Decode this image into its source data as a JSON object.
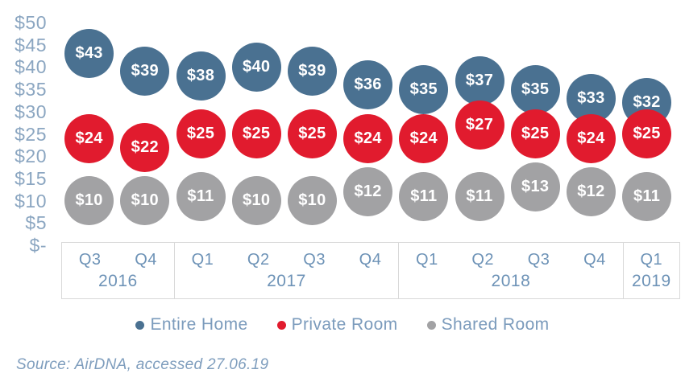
{
  "chart_data": {
    "type": "scatter",
    "subtype": "labeled-bubble-series",
    "title": "",
    "value_prefix": "$",
    "ylim": [
      0,
      50
    ],
    "grid": false,
    "legend_position": "bottom",
    "y_ticks": [
      "$50",
      "$45",
      "$40",
      "$35",
      "$30",
      "$25",
      "$20",
      "$15",
      "$10",
      "$5",
      "$-"
    ],
    "y_tick_values": [
      50,
      45,
      40,
      35,
      30,
      25,
      20,
      15,
      10,
      5,
      0
    ],
    "x_groups": [
      {
        "year": "2016",
        "quarters": [
          "Q3",
          "Q4"
        ]
      },
      {
        "year": "2017",
        "quarters": [
          "Q1",
          "Q2",
          "Q3",
          "Q4"
        ]
      },
      {
        "year": "2018",
        "quarters": [
          "Q1",
          "Q2",
          "Q3",
          "Q4"
        ]
      },
      {
        "year": "2019",
        "quarters": [
          "Q1"
        ]
      }
    ],
    "categories": [
      "2016 Q3",
      "2016 Q4",
      "2017 Q1",
      "2017 Q2",
      "2017 Q3",
      "2017 Q4",
      "2018 Q1",
      "2018 Q2",
      "2018 Q3",
      "2018 Q4",
      "2019 Q1"
    ],
    "series": [
      {
        "name": "Entire Home",
        "color": "#4a7191",
        "values": [
          43,
          39,
          38,
          40,
          39,
          36,
          35,
          37,
          35,
          33,
          32
        ]
      },
      {
        "name": "Private Room",
        "color": "#e11b2e",
        "values": [
          24,
          22,
          25,
          25,
          25,
          24,
          24,
          27,
          25,
          24,
          25
        ]
      },
      {
        "name": "Shared Room",
        "color": "#a2a2a4",
        "values": [
          10,
          10,
          11,
          10,
          10,
          12,
          11,
          11,
          13,
          12,
          11
        ]
      }
    ]
  },
  "source": {
    "text": "Source: AirDNA, accessed 27.06.19"
  }
}
